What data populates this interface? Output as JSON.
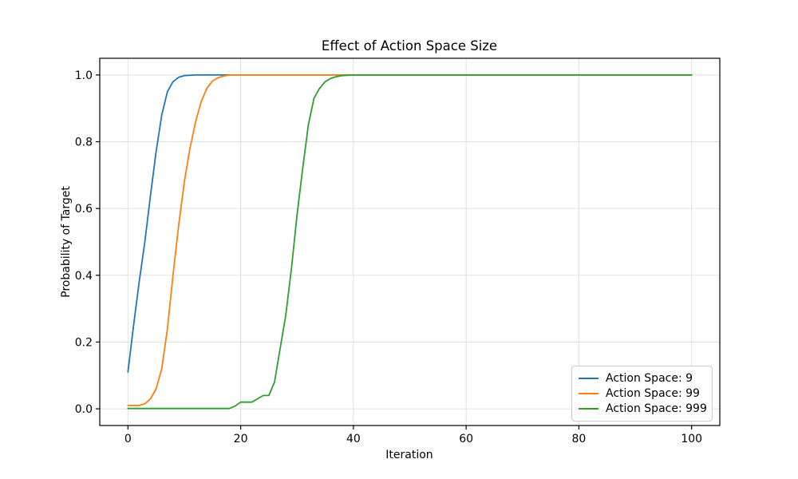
{
  "chart_data": {
    "type": "line",
    "title": "Effect of Action Space Size",
    "xlabel": "Iteration",
    "ylabel": "Probability of Target",
    "xlim": [
      -5,
      105
    ],
    "ylim": [
      -0.05,
      1.05
    ],
    "grid": true,
    "legend_position": "lower right",
    "x_ticks": [
      0,
      20,
      40,
      60,
      80,
      100
    ],
    "x_tick_labels": [
      "0",
      "20",
      "40",
      "60",
      "80",
      "100"
    ],
    "y_ticks": [
      0.0,
      0.2,
      0.4,
      0.6,
      0.8,
      1.0
    ],
    "y_tick_labels": [
      "0.0",
      "0.2",
      "0.4",
      "0.6",
      "0.8",
      "1.0"
    ],
    "colors": {
      "grid": "#e0e0e0",
      "spine": "#000000",
      "background": "#ffffff"
    },
    "series": [
      {
        "name": "Action Space: 9",
        "color": "#1f77b4",
        "points": [
          [
            0,
            0.11
          ],
          [
            1,
            0.25
          ],
          [
            2,
            0.38
          ],
          [
            3,
            0.5
          ],
          [
            4,
            0.64
          ],
          [
            5,
            0.77
          ],
          [
            6,
            0.88
          ],
          [
            7,
            0.95
          ],
          [
            8,
            0.98
          ],
          [
            9,
            0.993
          ],
          [
            10,
            0.998
          ],
          [
            12,
            1.0
          ],
          [
            15,
            1.0
          ],
          [
            20,
            1.0
          ],
          [
            25,
            1.0
          ],
          [
            30,
            1.0
          ],
          [
            40,
            1.0
          ],
          [
            50,
            1.0
          ],
          [
            60,
            1.0
          ],
          [
            70,
            1.0
          ],
          [
            80,
            1.0
          ],
          [
            90,
            1.0
          ],
          [
            100,
            1.0
          ]
        ]
      },
      {
        "name": "Action Space: 99",
        "color": "#ff7f0e",
        "points": [
          [
            0,
            0.01
          ],
          [
            1,
            0.01
          ],
          [
            2,
            0.01
          ],
          [
            3,
            0.015
          ],
          [
            4,
            0.03
          ],
          [
            5,
            0.06
          ],
          [
            6,
            0.12
          ],
          [
            7,
            0.24
          ],
          [
            8,
            0.4
          ],
          [
            9,
            0.55
          ],
          [
            10,
            0.68
          ],
          [
            11,
            0.78
          ],
          [
            12,
            0.86
          ],
          [
            13,
            0.92
          ],
          [
            14,
            0.96
          ],
          [
            15,
            0.982
          ],
          [
            16,
            0.992
          ],
          [
            17,
            0.997
          ],
          [
            18,
            1.0
          ],
          [
            20,
            1.0
          ],
          [
            25,
            1.0
          ],
          [
            30,
            1.0
          ],
          [
            40,
            1.0
          ],
          [
            50,
            1.0
          ],
          [
            60,
            1.0
          ],
          [
            70,
            1.0
          ],
          [
            80,
            1.0
          ],
          [
            90,
            1.0
          ],
          [
            100,
            1.0
          ]
        ]
      },
      {
        "name": "Action Space: 999",
        "color": "#2ca02c",
        "points": [
          [
            0,
            0.001
          ],
          [
            5,
            0.001
          ],
          [
            10,
            0.001
          ],
          [
            15,
            0.001
          ],
          [
            18,
            0.001
          ],
          [
            19,
            0.008
          ],
          [
            20,
            0.02
          ],
          [
            21,
            0.02
          ],
          [
            22,
            0.02
          ],
          [
            23,
            0.03
          ],
          [
            24,
            0.04
          ],
          [
            25,
            0.04
          ],
          [
            26,
            0.08
          ],
          [
            27,
            0.18
          ],
          [
            28,
            0.28
          ],
          [
            29,
            0.42
          ],
          [
            30,
            0.58
          ],
          [
            31,
            0.72
          ],
          [
            32,
            0.85
          ],
          [
            33,
            0.93
          ],
          [
            34,
            0.96
          ],
          [
            35,
            0.98
          ],
          [
            36,
            0.99
          ],
          [
            37,
            0.995
          ],
          [
            38,
            0.998
          ],
          [
            40,
            1.0
          ],
          [
            50,
            1.0
          ],
          [
            60,
            1.0
          ],
          [
            70,
            1.0
          ],
          [
            80,
            1.0
          ],
          [
            90,
            1.0
          ],
          [
            100,
            1.0
          ]
        ]
      }
    ]
  }
}
